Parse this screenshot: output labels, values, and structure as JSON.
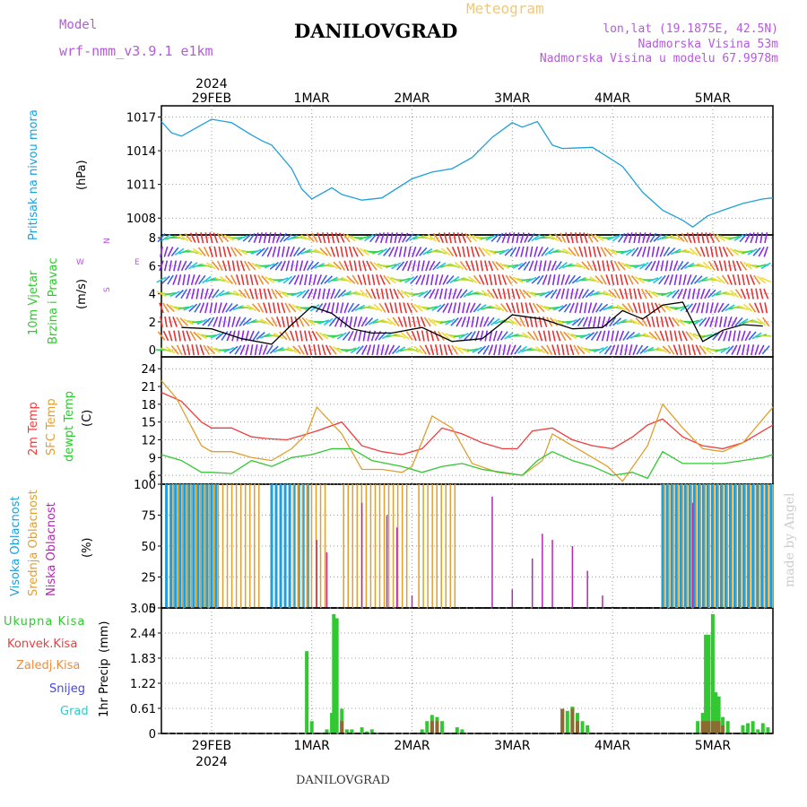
{
  "header": {
    "model_label": "Model",
    "model_name": "wrf-nmm_v3.9.1 e1km",
    "station": "DANILOVGRAD",
    "meteogram": "Meteogram",
    "lonlat": "lon,lat (19.1875E, 42.5N)",
    "altitude": "Nadmorska Visina 53m",
    "model_altitude": "Nadmorska Visina u modelu 67.9978m"
  },
  "footer": {
    "station": "DANILOVGRAD",
    "signature": "made by Angel"
  },
  "x_axis": {
    "year": "2024",
    "days": [
      {
        "label": "29FEB",
        "t": 0.5
      },
      {
        "label": "1MAR",
        "t": 1.5
      },
      {
        "label": "2MAR",
        "t": 2.5
      },
      {
        "label": "3MAR",
        "t": 3.5
      },
      {
        "label": "4MAR",
        "t": 4.5
      },
      {
        "label": "5MAR",
        "t": 5.5
      }
    ],
    "range_days": [
      0,
      6.1
    ]
  },
  "chart_data": [
    {
      "type": "line",
      "ylabel": [
        "Pritisak na nivou mora",
        "(hPa)"
      ],
      "yticks": [
        "1017",
        "1014",
        "1011",
        "1008"
      ],
      "ylim": [
        1006.5,
        1018
      ],
      "grid": true,
      "series": [
        {
          "color": "#1ea0dc",
          "x": [
            0,
            0.1,
            0.2,
            0.4,
            0.5,
            0.7,
            0.9,
            1.0,
            1.1,
            1.3,
            1.4,
            1.5,
            1.7,
            1.8,
            2.0,
            2.2,
            2.5,
            2.7,
            2.9,
            3.1,
            3.3,
            3.5,
            3.6,
            3.75,
            3.9,
            4.0,
            4.3,
            4.6,
            4.8,
            5.0,
            5.2,
            5.3,
            5.45,
            5.6,
            5.8,
            6.0,
            6.1
          ],
          "values": [
            1016.6,
            1015.6,
            1015.3,
            1016.3,
            1016.8,
            1016.5,
            1015.4,
            1014.9,
            1014.5,
            1012.4,
            1010.6,
            1009.7,
            1010.7,
            1010.1,
            1009.6,
            1009.8,
            1011.5,
            1012.1,
            1012.4,
            1013.4,
            1015.2,
            1016.5,
            1016.1,
            1016.6,
            1014.5,
            1014.2,
            1014.3,
            1012.6,
            1010.3,
            1008.7,
            1007.8,
            1007.2,
            1008.2,
            1008.7,
            1009.3,
            1009.7,
            1009.8
          ]
        }
      ]
    },
    {
      "type": "line",
      "ylabel": [
        "10m Vjetar",
        "Brzina i Pravac",
        "(m/s)"
      ],
      "compass": [
        "N",
        "W",
        "E",
        "S"
      ],
      "yticks": [
        "8",
        "6",
        "4",
        "2",
        "0"
      ],
      "ylim": [
        -0.5,
        8.2
      ],
      "grid": true,
      "series": [
        {
          "color": "#000000",
          "x": [
            0.2,
            0.5,
            0.8,
            1.1,
            1.3,
            1.5,
            1.7,
            1.9,
            2.1,
            2.3,
            2.6,
            2.9,
            3.2,
            3.5,
            3.8,
            4.1,
            4.4,
            4.6,
            4.8,
            5.0,
            5.2,
            5.4,
            5.6,
            5.8,
            6.0
          ],
          "values": [
            1.6,
            1.5,
            0.8,
            0.4,
            1.8,
            3.1,
            2.6,
            1.5,
            1.2,
            1.2,
            1.6,
            0.6,
            0.8,
            2.5,
            2.2,
            1.5,
            1.6,
            2.8,
            2.2,
            3.2,
            3.4,
            0.6,
            1.4,
            1.8,
            1.7
          ]
        }
      ]
    },
    {
      "type": "line",
      "ylabel": [
        "2m Temp",
        "SFC Temp",
        "dewpt Temp",
        "(C)"
      ],
      "yticks": [
        "24",
        "21",
        "18",
        "15",
        "12",
        "9",
        "6"
      ],
      "ylim": [
        4.5,
        26
      ],
      "grid": true,
      "series": [
        {
          "name": "2m Temp",
          "color": "#f03c3c",
          "x": [
            0,
            0.2,
            0.4,
            0.5,
            0.7,
            0.9,
            1.05,
            1.25,
            1.4,
            1.55,
            1.8,
            2.0,
            2.2,
            2.4,
            2.6,
            2.8,
            3.0,
            3.2,
            3.4,
            3.55,
            3.7,
            3.9,
            4.1,
            4.3,
            4.5,
            4.7,
            4.85,
            5.0,
            5.2,
            5.4,
            5.6,
            5.8,
            6.0,
            6.1
          ],
          "values": [
            20,
            18.5,
            15,
            14,
            14,
            12.5,
            12.2,
            12,
            12.7,
            13.5,
            15,
            11,
            10,
            9.5,
            10.5,
            14,
            13,
            11.5,
            10.5,
            10.5,
            13.5,
            14,
            12,
            11,
            10.5,
            12.5,
            14.5,
            15.5,
            12.5,
            11,
            10.5,
            11.5,
            13.5,
            14.5
          ]
        },
        {
          "name": "SFC Temp",
          "color": "#e0a030",
          "x": [
            0,
            0.15,
            0.4,
            0.5,
            0.7,
            0.9,
            1.1,
            1.3,
            1.45,
            1.55,
            1.8,
            2.0,
            2.2,
            2.4,
            2.5,
            2.7,
            2.9,
            3.1,
            3.35,
            3.6,
            3.8,
            3.9,
            4.1,
            4.3,
            4.45,
            4.6,
            4.85,
            5.0,
            5.2,
            5.4,
            5.6,
            5.8,
            6.1
          ],
          "values": [
            22,
            19,
            11,
            10,
            10,
            9,
            8.5,
            10.5,
            13,
            17.5,
            13,
            7,
            7,
            6.5,
            7.5,
            16,
            14,
            8,
            6.5,
            6,
            8.5,
            13,
            11,
            9,
            7.5,
            5,
            11,
            18,
            14,
            10.5,
            10,
            11.5,
            17.5
          ]
        },
        {
          "name": "dewpt Temp",
          "color": "#32c832",
          "x": [
            0,
            0.2,
            0.4,
            0.5,
            0.7,
            0.9,
            1.1,
            1.3,
            1.5,
            1.7,
            1.9,
            2.1,
            2.4,
            2.6,
            2.8,
            3.0,
            3.2,
            3.4,
            3.6,
            3.75,
            3.9,
            4.1,
            4.3,
            4.5,
            4.7,
            4.85,
            5.0,
            5.2,
            5.4,
            5.6,
            5.8,
            6.0,
            6.1
          ],
          "values": [
            9.5,
            8.5,
            6.5,
            6.5,
            6.3,
            8.5,
            7.5,
            9,
            9.5,
            10.5,
            10.5,
            8.5,
            7.5,
            6.5,
            7.5,
            8,
            7,
            6.5,
            6,
            8.5,
            10,
            8.5,
            7.5,
            6,
            6.5,
            5.5,
            10,
            8,
            8,
            8,
            8.5,
            9,
            9.5
          ]
        }
      ]
    },
    {
      "type": "bar",
      "ylabel": [
        "Visoka Oblacnost",
        "Srednja Oblacnost",
        "Niska Oblacnost",
        "(%)"
      ],
      "yticks": [
        "100",
        "75",
        "50",
        "25",
        "0"
      ],
      "ylim": [
        0,
        100
      ],
      "grid": true,
      "series": [
        {
          "name": "Visoka Oblacnost",
          "color": "#1ea0dc",
          "ranges": [
            [
              0.05,
              0.55,
              100
            ],
            [
              1.1,
              1.5,
              100
            ],
            [
              5.0,
              6.1,
              100
            ]
          ]
        },
        {
          "name": "Srednja Oblacnost",
          "color": "#e0a030",
          "ranges": [
            [
              0.1,
              1.0,
              100
            ],
            [
              1.3,
              1.65,
              100
            ],
            [
              1.8,
              2.45,
              100
            ],
            [
              2.55,
              2.95,
              100
            ],
            [
              5.0,
              6.1,
              100
            ]
          ]
        },
        {
          "name": "Niska Oblacnost",
          "color": "#b428b4",
          "points": [
            [
              1.55,
              55
            ],
            [
              1.65,
              45
            ],
            [
              2.0,
              85
            ],
            [
              2.25,
              75
            ],
            [
              2.35,
              65
            ],
            [
              2.5,
              10
            ],
            [
              3.3,
              90
            ],
            [
              3.5,
              15
            ],
            [
              3.7,
              40
            ],
            [
              3.8,
              60
            ],
            [
              3.9,
              55
            ],
            [
              4.1,
              50
            ],
            [
              4.25,
              30
            ],
            [
              4.4,
              10
            ],
            [
              5.3,
              85
            ]
          ]
        }
      ]
    },
    {
      "type": "bar",
      "ylabel": [
        "1hr Precip",
        "(mm)"
      ],
      "legend": [
        "Ukupna Kisa",
        "Konvek.Kisa",
        "Zaledj.Kisa",
        "Snijeg",
        "Grad"
      ],
      "legend_colors": [
        "#32c832",
        "#f03c3c",
        "#f08c3c",
        "#4646e6",
        "#32c8c8"
      ],
      "yticks": [
        "3.05",
        "2.44",
        "1.83",
        "1.22",
        "0.61",
        "0"
      ],
      "ylim": [
        0,
        3.05
      ],
      "grid": true,
      "bars_x": [
        1.45,
        1.5,
        1.65,
        1.7,
        1.72,
        1.75,
        1.8,
        1.85,
        1.9,
        2.0,
        2.05,
        2.1,
        2.6,
        2.65,
        2.7,
        2.75,
        2.8,
        2.95,
        3.0,
        4.0,
        4.05,
        4.1,
        4.15,
        4.2,
        4.25,
        5.35,
        5.4,
        5.43,
        5.46,
        5.5,
        5.53,
        5.56,
        5.6,
        5.65,
        5.8,
        5.85,
        5.9,
        5.95,
        6.0,
        6.05
      ],
      "bars_y": [
        2.0,
        0.3,
        0.1,
        0.5,
        2.9,
        2.8,
        0.6,
        0.1,
        0.1,
        0.15,
        0.05,
        0.1,
        0.1,
        0.3,
        0.45,
        0.4,
        0.3,
        0.15,
        0.1,
        0.6,
        0.55,
        0.65,
        0.5,
        0.3,
        0.2,
        0.3,
        0.5,
        2.4,
        2.4,
        2.9,
        1.0,
        0.9,
        0.4,
        0.3,
        0.2,
        0.25,
        0.3,
        0.1,
        0.25,
        0.15
      ],
      "conv_y": [
        0,
        0,
        0,
        0,
        0,
        0,
        0.3,
        0,
        0,
        0,
        0,
        0,
        0,
        0,
        0.3,
        0.3,
        0,
        0,
        0,
        0.6,
        0,
        0.6,
        0.3,
        0,
        0,
        0,
        0.3,
        0.3,
        0.3,
        0.3,
        0.3,
        0.3,
        0.2,
        0,
        0,
        0,
        0,
        0,
        0,
        0
      ]
    }
  ]
}
